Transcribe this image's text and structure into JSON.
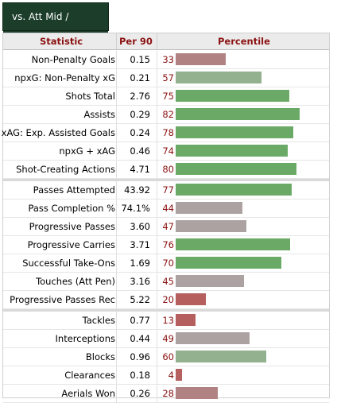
{
  "tab": {
    "label": "vs. Att Mid / Wingers"
  },
  "headers": {
    "statistic": "Statistic",
    "per90": "Per 90",
    "percentile": "Percentile"
  },
  "colors": {
    "high": "#6aaa66",
    "mid_high": "#93b08f",
    "mid": "#ada2a2",
    "low": "#b08282",
    "very_low": "#b55f5f"
  },
  "groups": [
    [
      {
        "stat": "Non-Penalty Goals",
        "per90": "0.15",
        "pct": "33",
        "pct_value": 33,
        "color": "#b08282"
      },
      {
        "stat": "npxG: Non-Penalty xG",
        "per90": "0.21",
        "pct": "57",
        "pct_value": 57,
        "color": "#93b08f"
      },
      {
        "stat": "Shots Total",
        "per90": "2.76",
        "pct": "75",
        "pct_value": 75,
        "color": "#6aaa66"
      },
      {
        "stat": "Assists",
        "per90": "0.29",
        "pct": "82",
        "pct_value": 82,
        "color": "#6aaa66"
      },
      {
        "stat": "xAG: Exp. Assisted Goals",
        "per90": "0.24",
        "pct": "78",
        "pct_value": 78,
        "color": "#6aaa66"
      },
      {
        "stat": "npxG + xAG",
        "per90": "0.46",
        "pct": "74",
        "pct_value": 74,
        "color": "#6aaa66"
      },
      {
        "stat": "Shot-Creating Actions",
        "per90": "4.71",
        "pct": "80",
        "pct_value": 80,
        "color": "#6aaa66"
      }
    ],
    [
      {
        "stat": "Passes Attempted",
        "per90": "43.92",
        "pct": "77",
        "pct_value": 77,
        "color": "#6aaa66"
      },
      {
        "stat": "Pass Completion %",
        "per90": "74.1%",
        "pct": "44",
        "pct_value": 44,
        "color": "#ada2a2"
      },
      {
        "stat": "Progressive Passes",
        "per90": "3.60",
        "pct": "47",
        "pct_value": 47,
        "color": "#ada2a2"
      },
      {
        "stat": "Progressive Carries",
        "per90": "3.71",
        "pct": "76",
        "pct_value": 76,
        "color": "#6aaa66"
      },
      {
        "stat": "Successful Take-Ons",
        "per90": "1.69",
        "pct": "70",
        "pct_value": 70,
        "color": "#6aaa66"
      },
      {
        "stat": "Touches (Att Pen)",
        "per90": "3.16",
        "pct": "45",
        "pct_value": 45,
        "color": "#ada2a2"
      },
      {
        "stat": "Progressive Passes Rec",
        "per90": "5.22",
        "pct": "20",
        "pct_value": 20,
        "color": "#b55f5f"
      }
    ],
    [
      {
        "stat": "Tackles",
        "per90": "0.77",
        "pct": "13",
        "pct_value": 13,
        "color": "#b55f5f"
      },
      {
        "stat": "Interceptions",
        "per90": "0.44",
        "pct": "49",
        "pct_value": 49,
        "color": "#ada2a2"
      },
      {
        "stat": "Blocks",
        "per90": "0.96",
        "pct": "60",
        "pct_value": 60,
        "color": "#93b08f"
      },
      {
        "stat": "Clearances",
        "per90": "0.18",
        "pct": "4",
        "pct_value": 4,
        "color": "#b55f5f"
      },
      {
        "stat": "Aerials Won",
        "per90": "0.26",
        "pct": "28",
        "pct_value": 28,
        "color": "#b08282"
      }
    ]
  ]
}
